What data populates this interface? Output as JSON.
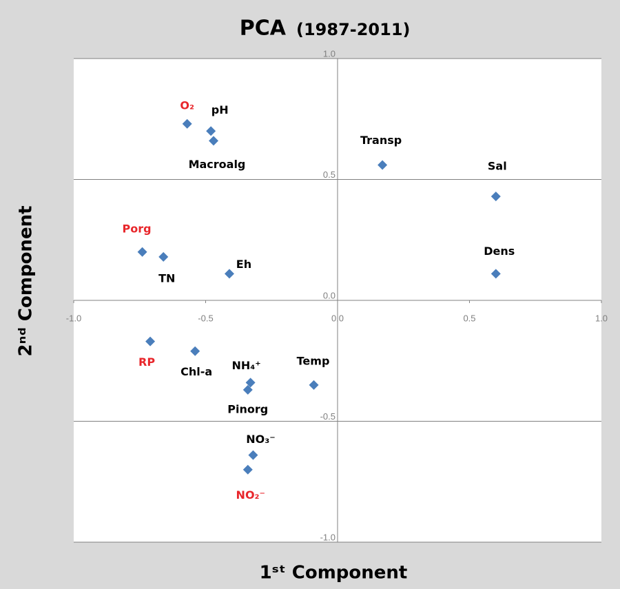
{
  "chart_data": {
    "type": "scatter",
    "title": "PCA",
    "subtitle": "(1987-2011)",
    "x_label": "1ˢᵗ Component",
    "y_label": "2ⁿᵈ Component",
    "xlim": [
      -1,
      1
    ],
    "ylim": [
      -1,
      1
    ],
    "xticks": [
      {
        "value": -1,
        "label": "-1.0"
      },
      -0.5,
      {
        "value": 0,
        "label": "0.0"
      },
      0.5,
      {
        "value": 1,
        "label": "1.0"
      }
    ],
    "yticks": [
      {
        "value": -1,
        "label": "-1.0"
      },
      -0.5,
      {
        "value": 0,
        "label": "0.0"
      },
      0.5,
      {
        "value": 1,
        "label": "1.0"
      }
    ],
    "grid": true,
    "marker_color": "#4a7ebb",
    "points": [
      {
        "label": "O₂",
        "x": -0.57,
        "y": 0.73,
        "label_color": "#e8262b"
      },
      {
        "label": "pH",
        "x": -0.48,
        "y": 0.7,
        "label_color": "#000000"
      },
      {
        "label": "Macroalg",
        "x": -0.47,
        "y": 0.66,
        "label_color": "#000000"
      },
      {
        "label": "Transp",
        "x": 0.17,
        "y": 0.56,
        "label_color": "#000000"
      },
      {
        "label": "Sal",
        "x": 0.6,
        "y": 0.43,
        "label_color": "#000000"
      },
      {
        "label": "Porg",
        "x": -0.74,
        "y": 0.2,
        "label_color": "#e8262b"
      },
      {
        "label": "TN",
        "x": -0.66,
        "y": 0.18,
        "label_color": "#000000"
      },
      {
        "label": "Eh",
        "x": -0.41,
        "y": 0.11,
        "label_color": "#000000"
      },
      {
        "label": "Dens",
        "x": 0.6,
        "y": 0.11,
        "label_color": "#000000"
      },
      {
        "label": "RP",
        "x": -0.71,
        "y": -0.17,
        "label_color": "#e8262b"
      },
      {
        "label": "Chl-a",
        "x": -0.54,
        "y": -0.21,
        "label_color": "#000000"
      },
      {
        "label": "NH₄⁺",
        "x": -0.33,
        "y": -0.34,
        "label_color": "#000000"
      },
      {
        "label": "Pinorg",
        "x": -0.34,
        "y": -0.37,
        "label_color": "#000000"
      },
      {
        "label": "Temp",
        "x": -0.09,
        "y": -0.35,
        "label_color": "#000000"
      },
      {
        "label": "NO₃⁻",
        "x": -0.32,
        "y": -0.64,
        "label_color": "#000000"
      },
      {
        "label": "NO₂⁻",
        "x": -0.34,
        "y": -0.7,
        "label_color": "#e8262b"
      }
    ]
  }
}
